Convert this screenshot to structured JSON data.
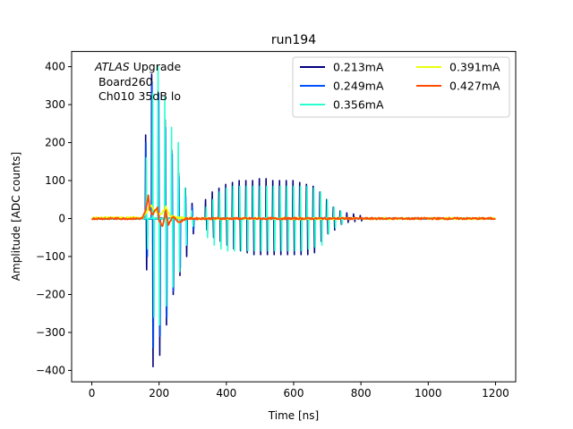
{
  "chart_data": {
    "type": "line",
    "title": "run194",
    "xlabel": "Time [ns]",
    "ylabel": "Amplitude [ADC counts]",
    "xlim": [
      -60,
      1260
    ],
    "ylim": [
      -430,
      440
    ],
    "xticks": [
      0,
      200,
      400,
      600,
      800,
      1000,
      1200
    ],
    "yticks": [
      -400,
      -300,
      -200,
      -100,
      0,
      100,
      200,
      300,
      400
    ],
    "grid": false,
    "legend": {
      "placement": "top-right",
      "columns": 2
    },
    "annotation": {
      "italic": "ATLAS",
      "rest": " Upgrade",
      "line2": "Board260",
      "line3": "Ch010 35dB lo"
    },
    "series": [
      {
        "name": "0.213mA",
        "color": "#00007f",
        "spikes": [
          {
            "x": 160,
            "y": 220
          },
          {
            "x": 163,
            "y": -135
          },
          {
            "x": 178,
            "y": 380
          },
          {
            "x": 182,
            "y": -390
          },
          {
            "x": 198,
            "y": 300
          },
          {
            "x": 202,
            "y": -360
          },
          {
            "x": 218,
            "y": 260
          },
          {
            "x": 222,
            "y": -280
          },
          {
            "x": 238,
            "y": 180
          },
          {
            "x": 242,
            "y": -200
          },
          {
            "x": 258,
            "y": 120
          },
          {
            "x": 262,
            "y": -150
          },
          {
            "x": 278,
            "y": 80
          },
          {
            "x": 282,
            "y": -100
          },
          {
            "x": 298,
            "y": 40
          },
          {
            "x": 302,
            "y": -40
          },
          {
            "x": 338,
            "y": 50
          },
          {
            "x": 342,
            "y": -30
          },
          {
            "x": 358,
            "y": 70
          },
          {
            "x": 362,
            "y": -50
          },
          {
            "x": 378,
            "y": 80
          },
          {
            "x": 382,
            "y": -60
          },
          {
            "x": 398,
            "y": 90
          },
          {
            "x": 402,
            "y": -70
          },
          {
            "x": 418,
            "y": 95
          },
          {
            "x": 422,
            "y": -80
          },
          {
            "x": 438,
            "y": 100
          },
          {
            "x": 442,
            "y": -85
          },
          {
            "x": 458,
            "y": 100
          },
          {
            "x": 462,
            "y": -90
          },
          {
            "x": 478,
            "y": 100
          },
          {
            "x": 482,
            "y": -95
          },
          {
            "x": 498,
            "y": 105
          },
          {
            "x": 502,
            "y": -95
          },
          {
            "x": 518,
            "y": 105
          },
          {
            "x": 522,
            "y": -95
          },
          {
            "x": 538,
            "y": 100
          },
          {
            "x": 542,
            "y": -95
          },
          {
            "x": 558,
            "y": 100
          },
          {
            "x": 562,
            "y": -95
          },
          {
            "x": 578,
            "y": 100
          },
          {
            "x": 582,
            "y": -95
          },
          {
            "x": 598,
            "y": 100
          },
          {
            "x": 602,
            "y": -95
          },
          {
            "x": 618,
            "y": 95
          },
          {
            "x": 622,
            "y": -95
          },
          {
            "x": 638,
            "y": 90
          },
          {
            "x": 642,
            "y": -95
          },
          {
            "x": 658,
            "y": 85
          },
          {
            "x": 662,
            "y": -90
          },
          {
            "x": 678,
            "y": 70
          },
          {
            "x": 682,
            "y": -60
          },
          {
            "x": 698,
            "y": 50
          },
          {
            "x": 702,
            "y": -40
          },
          {
            "x": 718,
            "y": 30
          },
          {
            "x": 722,
            "y": -30
          },
          {
            "x": 738,
            "y": 20
          },
          {
            "x": 742,
            "y": -15
          },
          {
            "x": 758,
            "y": 15
          },
          {
            "x": 762,
            "y": -10
          },
          {
            "x": 778,
            "y": 12
          },
          {
            "x": 782,
            "y": -8
          },
          {
            "x": 798,
            "y": 8
          },
          {
            "x": 802,
            "y": -6
          }
        ]
      },
      {
        "name": "0.249mA",
        "color": "#0050ff",
        "spikes": [
          {
            "x": 161,
            "y": 200
          },
          {
            "x": 165,
            "y": -100
          },
          {
            "x": 179,
            "y": 360
          },
          {
            "x": 183,
            "y": -340
          },
          {
            "x": 199,
            "y": 330
          },
          {
            "x": 203,
            "y": -310
          },
          {
            "x": 219,
            "y": 240
          },
          {
            "x": 223,
            "y": -260
          },
          {
            "x": 239,
            "y": 170
          },
          {
            "x": 243,
            "y": -190
          },
          {
            "x": 259,
            "y": 110
          },
          {
            "x": 263,
            "y": -130
          },
          {
            "x": 279,
            "y": 60
          },
          {
            "x": 283,
            "y": -70
          },
          {
            "x": 299,
            "y": 30
          },
          {
            "x": 303,
            "y": -30
          }
        ]
      },
      {
        "name": "0.356mA",
        "color": "#29ffce",
        "spikes": [
          {
            "x": 162,
            "y": 160
          },
          {
            "x": 166,
            "y": -80
          },
          {
            "x": 181,
            "y": 330
          },
          {
            "x": 185,
            "y": -260
          },
          {
            "x": 197,
            "y": 400
          },
          {
            "x": 201,
            "y": -280
          },
          {
            "x": 217,
            "y": 320
          },
          {
            "x": 221,
            "y": -230
          },
          {
            "x": 237,
            "y": 240
          },
          {
            "x": 241,
            "y": -180
          },
          {
            "x": 257,
            "y": 200
          },
          {
            "x": 261,
            "y": -140
          },
          {
            "x": 277,
            "y": 80
          },
          {
            "x": 281,
            "y": -70
          },
          {
            "x": 297,
            "y": 20
          },
          {
            "x": 301,
            "y": -20
          },
          {
            "x": 340,
            "y": 30
          },
          {
            "x": 344,
            "y": -50
          },
          {
            "x": 360,
            "y": 50
          },
          {
            "x": 364,
            "y": -70
          },
          {
            "x": 380,
            "y": 70
          },
          {
            "x": 384,
            "y": -80
          },
          {
            "x": 400,
            "y": 80
          },
          {
            "x": 404,
            "y": -85
          },
          {
            "x": 420,
            "y": 85
          },
          {
            "x": 424,
            "y": -85
          },
          {
            "x": 440,
            "y": 85
          },
          {
            "x": 444,
            "y": -85
          },
          {
            "x": 460,
            "y": 85
          },
          {
            "x": 464,
            "y": -85
          },
          {
            "x": 480,
            "y": 85
          },
          {
            "x": 484,
            "y": -85
          },
          {
            "x": 500,
            "y": 85
          },
          {
            "x": 504,
            "y": -85
          },
          {
            "x": 520,
            "y": 85
          },
          {
            "x": 524,
            "y": -85
          },
          {
            "x": 540,
            "y": 85
          },
          {
            "x": 544,
            "y": -85
          },
          {
            "x": 560,
            "y": 85
          },
          {
            "x": 564,
            "y": -85
          },
          {
            "x": 580,
            "y": 85
          },
          {
            "x": 584,
            "y": -85
          },
          {
            "x": 600,
            "y": 85
          },
          {
            "x": 604,
            "y": -85
          },
          {
            "x": 620,
            "y": 85
          },
          {
            "x": 624,
            "y": -85
          },
          {
            "x": 640,
            "y": 85
          },
          {
            "x": 644,
            "y": -80
          },
          {
            "x": 660,
            "y": 80
          },
          {
            "x": 664,
            "y": -75
          },
          {
            "x": 680,
            "y": 70
          },
          {
            "x": 684,
            "y": -70
          },
          {
            "x": 700,
            "y": 50
          },
          {
            "x": 704,
            "y": -40
          },
          {
            "x": 720,
            "y": 30
          },
          {
            "x": 724,
            "y": -25
          },
          {
            "x": 740,
            "y": 20
          },
          {
            "x": 744,
            "y": -15
          }
        ]
      },
      {
        "name": "0.391mA",
        "color": "#ecff0c",
        "points": [
          [
            0,
            2
          ],
          [
            150,
            2
          ],
          [
            165,
            20
          ],
          [
            175,
            35
          ],
          [
            190,
            20
          ],
          [
            205,
            10
          ],
          [
            220,
            30
          ],
          [
            235,
            5
          ],
          [
            260,
            2
          ],
          [
            300,
            0
          ],
          [
            1200,
            0
          ]
        ]
      },
      {
        "name": "0.427mA",
        "color": "#ff4a00",
        "points": [
          [
            0,
            0
          ],
          [
            150,
            0
          ],
          [
            160,
            20
          ],
          [
            168,
            60
          ],
          [
            172,
            25
          ],
          [
            180,
            10
          ],
          [
            195,
            30
          ],
          [
            200,
            -5
          ],
          [
            210,
            -20
          ],
          [
            220,
            20
          ],
          [
            228,
            -15
          ],
          [
            240,
            5
          ],
          [
            260,
            -10
          ],
          [
            280,
            0
          ],
          [
            1200,
            0
          ]
        ]
      }
    ]
  }
}
